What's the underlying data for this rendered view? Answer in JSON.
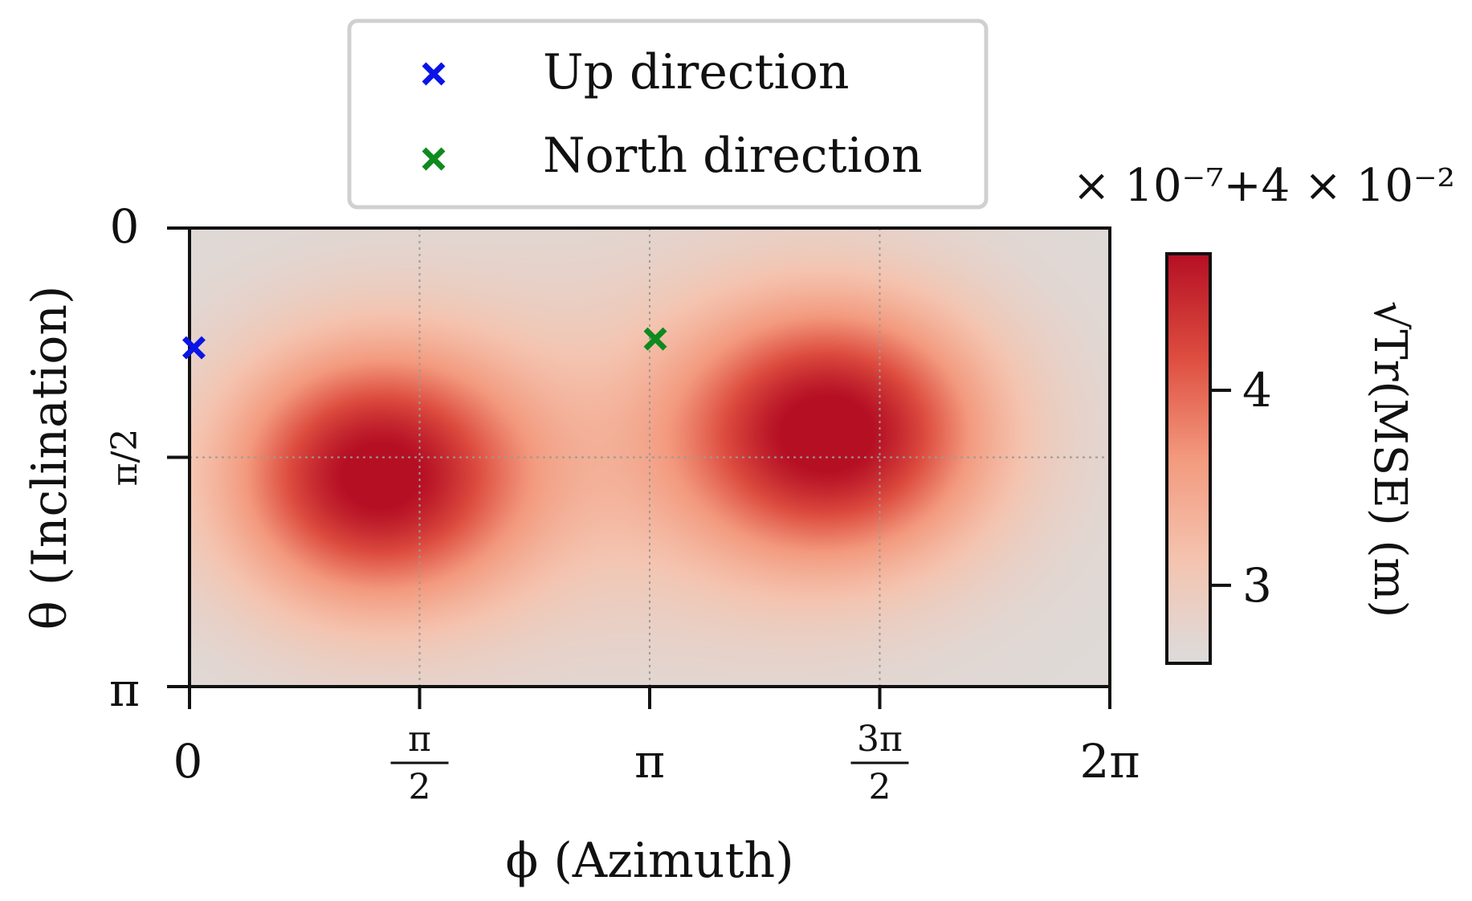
{
  "chart_data": {
    "type": "heatmap",
    "title": "",
    "xlabel": "ϕ (Azimuth)",
    "ylabel": "θ (Inclination)",
    "xlim": [
      0,
      6.2832
    ],
    "ylim": [
      0,
      3.1416
    ],
    "y_inverted": true,
    "grid": true,
    "x_ticks": [
      {
        "value": 0,
        "num": "0",
        "den": ""
      },
      {
        "value": 1.5708,
        "num": "π",
        "den": "2"
      },
      {
        "value": 3.1416,
        "num": "π",
        "den": ""
      },
      {
        "value": 4.7124,
        "num": "3π",
        "den": "2"
      },
      {
        "value": 6.2832,
        "num": "2π",
        "den": ""
      }
    ],
    "y_ticks": [
      {
        "value": 0,
        "label": "0"
      },
      {
        "value": 1.5708,
        "label": "π/2"
      },
      {
        "value": 3.1416,
        "label": "π"
      }
    ],
    "colormap": "Reds",
    "colorbar": {
      "label": "√Tr(MSE) (m)",
      "vmin": 2.6,
      "vmax": 4.7,
      "ticks": [
        3,
        4
      ],
      "offset_text": "× 10⁻⁷+4 × 10⁻²"
    },
    "field": {
      "base": 2.65,
      "peaks": [
        {
          "phi": 1.27,
          "theta": 1.7,
          "amplitude": 2.05,
          "sigma_phi": 0.72,
          "sigma_theta": 0.62
        },
        {
          "phi": 4.4,
          "theta": 1.4,
          "amplitude": 2.0,
          "sigma_phi": 0.74,
          "sigma_theta": 0.62
        }
      ],
      "ridge": {
        "phi": 3.1416,
        "theta": 1.5708,
        "amplitude": 0.35,
        "sigma_phi": 1.3,
        "sigma_theta": 0.9
      }
    },
    "markers": [
      {
        "name": "Up direction",
        "phi": 0.03,
        "theta": 0.82,
        "color": "#0a14e6"
      },
      {
        "name": "North direction",
        "phi": 3.18,
        "theta": 0.76,
        "color": "#0f8a1e"
      }
    ],
    "legend": {
      "position": "top-center",
      "entries": [
        "Up direction",
        "North direction"
      ]
    }
  }
}
